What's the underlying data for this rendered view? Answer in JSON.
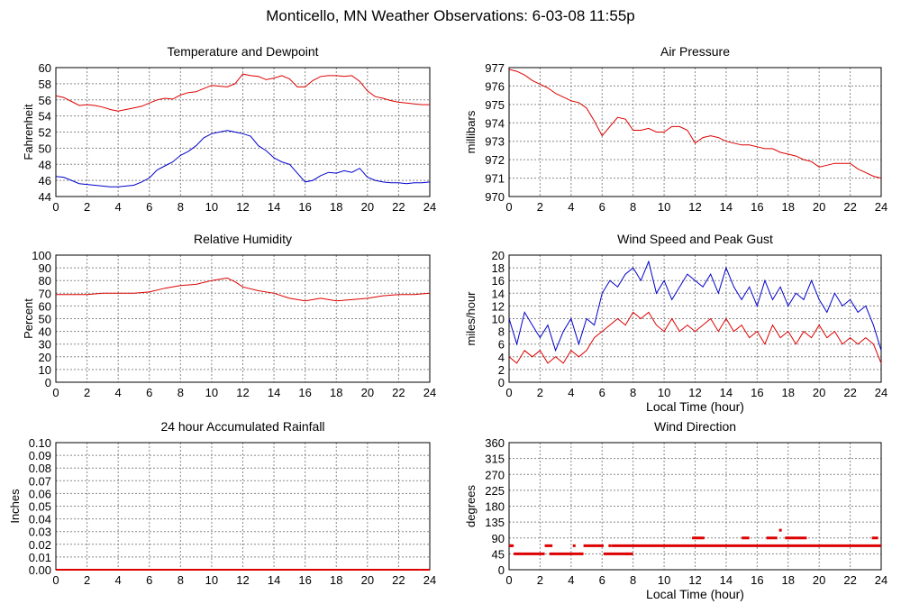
{
  "page": {
    "title": "Monticello, MN Weather Observations: 6-03-08 11:55p"
  },
  "chart_data": [
    {
      "id": "temp",
      "type": "line",
      "title": "Temperature and Dewpoint",
      "xlabel": "",
      "ylabel": "Fahrenheit",
      "xlim": [
        0,
        24
      ],
      "ylim": [
        44,
        60
      ],
      "xticks": [
        0,
        2,
        4,
        6,
        8,
        10,
        12,
        14,
        16,
        18,
        20,
        22,
        24
      ],
      "yticks": [
        44,
        46,
        48,
        50,
        52,
        54,
        56,
        58,
        60
      ],
      "grid": true,
      "series": [
        {
          "color": "#dd0000",
          "x": [
            0,
            0.5,
            1,
            1.5,
            2,
            2.5,
            3,
            3.5,
            4,
            4.5,
            5,
            5.5,
            6,
            6.5,
            7,
            7.5,
            8,
            8.5,
            9,
            9.5,
            10,
            10.5,
            11,
            11.5,
            12,
            12.5,
            13,
            13.5,
            14,
            14.5,
            15,
            15.5,
            16,
            16.5,
            17,
            17.5,
            18,
            18.5,
            19,
            19.5,
            20,
            20.5,
            21,
            21.5,
            22,
            22.5,
            23,
            23.5,
            24
          ],
          "y": [
            56.5,
            56.3,
            55.8,
            55.3,
            55.4,
            55.3,
            55.1,
            54.8,
            54.6,
            54.8,
            55.0,
            55.2,
            55.6,
            56.0,
            56.2,
            56.1,
            56.6,
            56.9,
            57.0,
            57.4,
            57.8,
            57.7,
            57.6,
            58.0,
            59.2,
            59.0,
            58.9,
            58.5,
            58.7,
            59.0,
            58.6,
            57.6,
            57.6,
            58.4,
            58.9,
            59.0,
            59.0,
            58.9,
            59.0,
            58.3,
            57.1,
            56.4,
            56.2,
            55.9,
            55.7,
            55.6,
            55.5,
            55.4,
            55.4
          ]
        },
        {
          "color": "#0000cc",
          "x": [
            0,
            0.5,
            1,
            1.5,
            2,
            2.5,
            3,
            3.5,
            4,
            4.5,
            5,
            5.5,
            6,
            6.5,
            7,
            7.5,
            8,
            8.5,
            9,
            9.5,
            10,
            10.5,
            11,
            11.5,
            12,
            12.5,
            13,
            13.5,
            14,
            14.5,
            15,
            15.5,
            16,
            16.5,
            17,
            17.5,
            18,
            18.5,
            19,
            19.5,
            20,
            20.5,
            21,
            21.5,
            22,
            22.5,
            23,
            23.5,
            24
          ],
          "y": [
            46.5,
            46.4,
            46.0,
            45.6,
            45.5,
            45.4,
            45.3,
            45.2,
            45.2,
            45.3,
            45.4,
            45.8,
            46.3,
            47.3,
            47.8,
            48.3,
            49.1,
            49.6,
            50.3,
            51.3,
            51.8,
            52.0,
            52.2,
            52.0,
            51.8,
            51.5,
            50.3,
            49.7,
            48.8,
            48.3,
            48.0,
            46.9,
            45.8,
            46.0,
            46.6,
            47.0,
            46.9,
            47.2,
            47.0,
            47.5,
            46.4,
            46.0,
            45.8,
            45.7,
            45.7,
            45.6,
            45.7,
            45.7,
            45.8
          ]
        }
      ]
    },
    {
      "id": "pressure",
      "type": "line",
      "title": "Air Pressure",
      "xlabel": "",
      "ylabel": "millibars",
      "xlim": [
        0,
        24
      ],
      "ylim": [
        970,
        977
      ],
      "xticks": [
        0,
        2,
        4,
        6,
        8,
        10,
        12,
        14,
        16,
        18,
        20,
        22,
        24
      ],
      "yticks": [
        970,
        971,
        972,
        973,
        974,
        975,
        976,
        977
      ],
      "grid": true,
      "series": [
        {
          "color": "#dd0000",
          "x": [
            0,
            0.5,
            1,
            1.5,
            2,
            2.5,
            3,
            3.5,
            4,
            4.5,
            5,
            5.5,
            6,
            6.5,
            7,
            7.5,
            8,
            8.5,
            9,
            9.5,
            10,
            10.5,
            11,
            11.5,
            12,
            12.5,
            13,
            13.5,
            14,
            14.5,
            15,
            15.5,
            16,
            16.5,
            17,
            17.5,
            18,
            18.5,
            19,
            19.5,
            20,
            20.5,
            21,
            21.5,
            22,
            22.5,
            23,
            23.5,
            24
          ],
          "y": [
            976.9,
            976.8,
            976.6,
            976.3,
            976.1,
            975.9,
            975.6,
            975.4,
            975.2,
            975.1,
            974.8,
            974.1,
            973.3,
            973.8,
            974.3,
            974.2,
            973.6,
            973.6,
            973.7,
            973.5,
            973.5,
            973.8,
            973.8,
            973.6,
            972.9,
            973.2,
            973.3,
            973.2,
            973.0,
            972.9,
            972.8,
            972.8,
            972.7,
            972.6,
            972.6,
            972.4,
            972.3,
            972.2,
            972.0,
            971.9,
            971.6,
            971.7,
            971.8,
            971.8,
            971.8,
            971.5,
            971.3,
            971.1,
            971.0
          ]
        }
      ]
    },
    {
      "id": "humidity",
      "type": "line",
      "title": "Relative Humidity",
      "xlabel": "",
      "ylabel": "Percent",
      "xlim": [
        0,
        24
      ],
      "ylim": [
        0,
        100
      ],
      "xticks": [
        0,
        2,
        4,
        6,
        8,
        10,
        12,
        14,
        16,
        18,
        20,
        22,
        24
      ],
      "yticks": [
        0,
        10,
        20,
        30,
        40,
        50,
        60,
        70,
        80,
        90,
        100
      ],
      "grid": true,
      "series": [
        {
          "color": "#dd0000",
          "x": [
            0,
            1,
            2,
            3,
            4,
            5,
            6,
            7,
            8,
            9,
            10,
            11,
            11.5,
            12,
            13,
            14,
            15,
            16,
            17,
            18,
            19,
            20,
            21,
            22,
            23,
            24
          ],
          "y": [
            69,
            69,
            69,
            70,
            70,
            70,
            71,
            74,
            76,
            77,
            80,
            82,
            79,
            75,
            72,
            70,
            66,
            64,
            66,
            64,
            65,
            66,
            68,
            69,
            69,
            70
          ]
        }
      ]
    },
    {
      "id": "wind",
      "type": "line",
      "title": "Wind Speed and Peak Gust",
      "xlabel": "Local Time (hour)",
      "ylabel": "miles/hour",
      "xlim": [
        0,
        24
      ],
      "ylim": [
        0,
        20
      ],
      "xticks": [
        0,
        2,
        4,
        6,
        8,
        10,
        12,
        14,
        16,
        18,
        20,
        22,
        24
      ],
      "yticks": [
        0,
        2,
        4,
        6,
        8,
        10,
        12,
        14,
        16,
        18,
        20
      ],
      "grid": true,
      "series": [
        {
          "color": "#0000cc",
          "x": [
            0,
            0.5,
            1,
            1.5,
            2,
            2.5,
            3,
            3.5,
            4,
            4.5,
            5,
            5.5,
            6,
            6.5,
            7,
            7.5,
            8,
            8.5,
            9,
            9.5,
            10,
            10.5,
            11,
            11.5,
            12,
            12.5,
            13,
            13.5,
            14,
            14.5,
            15,
            15.5,
            16,
            16.5,
            17,
            17.5,
            18,
            18.5,
            19,
            19.5,
            20,
            20.5,
            21,
            21.5,
            22,
            22.5,
            23,
            23.5,
            24
          ],
          "y": [
            10,
            6,
            11,
            9,
            7,
            9,
            5,
            8,
            10,
            6,
            10,
            9,
            14,
            16,
            15,
            17,
            18,
            16,
            19,
            14,
            16,
            13,
            15,
            17,
            16,
            15,
            17,
            14,
            18,
            15,
            13,
            15,
            12,
            16,
            13,
            15,
            12,
            14,
            13,
            16,
            13,
            11,
            14,
            12,
            13,
            11,
            12,
            9,
            5
          ]
        },
        {
          "color": "#dd0000",
          "x": [
            0,
            0.5,
            1,
            1.5,
            2,
            2.5,
            3,
            3.5,
            4,
            4.5,
            5,
            5.5,
            6,
            6.5,
            7,
            7.5,
            8,
            8.5,
            9,
            9.5,
            10,
            10.5,
            11,
            11.5,
            12,
            12.5,
            13,
            13.5,
            14,
            14.5,
            15,
            15.5,
            16,
            16.5,
            17,
            17.5,
            18,
            18.5,
            19,
            19.5,
            20,
            20.5,
            21,
            21.5,
            22,
            22.5,
            23,
            23.5,
            24
          ],
          "y": [
            4,
            3,
            5,
            4,
            5,
            3,
            4,
            3,
            5,
            4,
            5,
            7,
            8,
            9,
            10,
            9,
            11,
            10,
            11,
            9,
            8,
            10,
            8,
            9,
            8,
            9,
            10,
            8,
            10,
            8,
            9,
            7,
            8,
            6,
            9,
            7,
            8,
            6,
            8,
            7,
            9,
            7,
            8,
            6,
            7,
            6,
            7,
            6,
            3
          ]
        }
      ]
    },
    {
      "id": "rain",
      "type": "line",
      "title": "24 hour Accumulated Rainfall",
      "xlabel": "",
      "ylabel": "Inches",
      "xlim": [
        0,
        24
      ],
      "ylim": [
        0,
        0.1
      ],
      "xticks": [
        0,
        2,
        4,
        6,
        8,
        10,
        12,
        14,
        16,
        18,
        20,
        22,
        24
      ],
      "yticks": [
        "0.00",
        "0.01",
        "0.02",
        "0.03",
        "0.04",
        "0.05",
        "0.06",
        "0.07",
        "0.08",
        "0.09",
        "0.10"
      ],
      "grid": true,
      "series": [
        {
          "color": "#dd0000",
          "x": [
            0,
            24
          ],
          "y": [
            0,
            0
          ]
        }
      ]
    },
    {
      "id": "winddir",
      "type": "scatter",
      "title": "Wind Direction",
      "xlabel": "Local Time (hour)",
      "ylabel": "degrees",
      "xlim": [
        0,
        24
      ],
      "ylim": [
        0,
        360
      ],
      "xticks": [
        0,
        2,
        4,
        6,
        8,
        10,
        12,
        14,
        16,
        18,
        20,
        22,
        24
      ],
      "yticks": [
        0,
        45,
        90,
        135,
        180,
        225,
        270,
        315,
        360
      ],
      "grid": true,
      "series": [
        {
          "color": "#dd0000",
          "segments": [
            {
              "x0": 0,
              "x1": 0.3,
              "y": 68
            },
            {
              "x0": 0.3,
              "x1": 2.3,
              "y": 45
            },
            {
              "x0": 2.3,
              "x1": 2.8,
              "y": 68
            },
            {
              "x0": 2.6,
              "x1": 4.8,
              "y": 45
            },
            {
              "x0": 4.8,
              "x1": 6.1,
              "y": 68
            },
            {
              "x0": 6.1,
              "x1": 8.0,
              "y": 45
            },
            {
              "x0": 6.6,
              "x1": 24,
              "y": 68
            },
            {
              "x0": 11.8,
              "x1": 12.6,
              "y": 90
            },
            {
              "x0": 15.0,
              "x1": 15.5,
              "y": 90
            },
            {
              "x0": 16.6,
              "x1": 17.3,
              "y": 90
            },
            {
              "x0": 17.8,
              "x1": 19.2,
              "y": 90
            },
            {
              "x0": 23.4,
              "x1": 23.8,
              "y": 90
            }
          ],
          "points": [
            {
              "x": 0.1,
              "y": 68
            },
            {
              "x": 4.2,
              "y": 68
            },
            {
              "x": 17.5,
              "y": 112
            },
            {
              "x": 6.5,
              "y": 68
            },
            {
              "x": 7.6,
              "y": 45
            }
          ]
        }
      ]
    }
  ]
}
